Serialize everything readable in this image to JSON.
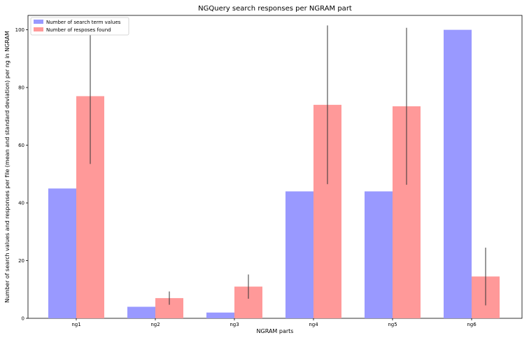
{
  "chart_data": {
    "type": "bar",
    "title": "NGQuery search responses per NGRAM part",
    "xlabel": "NGRAM parts",
    "ylabel": "Number of search values and responses per file (mean and standard deviation) per ng in NGRAM",
    "categories": [
      "ng1",
      "ng2",
      "ng3",
      "ng4",
      "ng5",
      "ng6"
    ],
    "ylim": [
      0,
      105
    ],
    "yticks": [
      0,
      20,
      40,
      60,
      80,
      100
    ],
    "legend_position": "top-left",
    "grid": false,
    "series": [
      {
        "name": "Number of search term values",
        "color": "#9999ff",
        "values": [
          45,
          4,
          2,
          44,
          44,
          100
        ],
        "error": null
      },
      {
        "name": "Number of resposes found",
        "color": "#ff9999",
        "values": [
          77,
          7,
          11,
          74,
          73.5,
          14.5
        ],
        "error": [
          23.5,
          2.3,
          4.2,
          27.5,
          27.2,
          10
        ]
      }
    ]
  }
}
